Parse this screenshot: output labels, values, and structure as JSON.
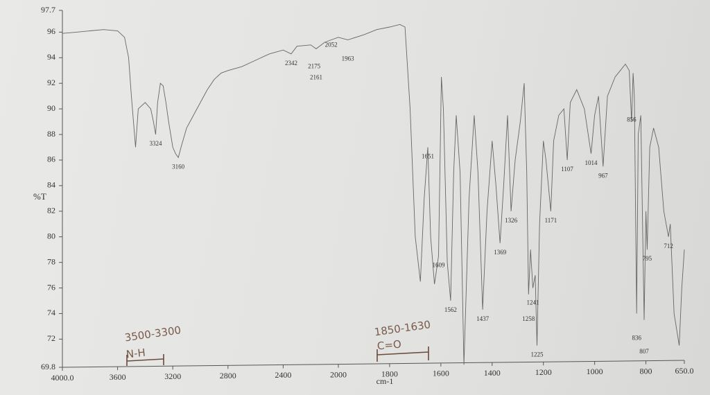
{
  "chart_data": {
    "type": "line",
    "x_label": "cm-1",
    "y_label": "%T",
    "color": "#666666",
    "x": [
      4000,
      3900,
      3800,
      3700,
      3600,
      3550,
      3520,
      3500,
      3470,
      3450,
      3400,
      3360,
      3340,
      3324,
      3310,
      3290,
      3270,
      3250,
      3230,
      3200,
      3180,
      3160,
      3140,
      3100,
      3050,
      3000,
      2950,
      2900,
      2850,
      2800,
      2700,
      2600,
      2500,
      2400,
      2342,
      2300,
      2200,
      2175,
      2161,
      2100,
      2052,
      2000,
      1963,
      1900,
      1850,
      1800,
      1760,
      1740,
      1720,
      1700,
      1680,
      1665,
      1651,
      1640,
      1625,
      1609,
      1598,
      1590,
      1575,
      1562,
      1550,
      1540,
      1525,
      1510,
      1490,
      1470,
      1455,
      1437,
      1420,
      1400,
      1385,
      1369,
      1355,
      1340,
      1326,
      1310,
      1290,
      1275,
      1265,
      1258,
      1250,
      1241,
      1232,
      1225,
      1215,
      1200,
      1190,
      1171,
      1160,
      1140,
      1120,
      1107,
      1095,
      1070,
      1040,
      1014,
      1000,
      985,
      967,
      950,
      920,
      900,
      880,
      865,
      856,
      850,
      845,
      836,
      830,
      820,
      807,
      800,
      795,
      785,
      770,
      750,
      730,
      712,
      705,
      690,
      670,
      660,
      650
    ],
    "values": [
      95.9,
      96.0,
      96.1,
      96.2,
      96.1,
      95.6,
      94,
      91,
      87,
      90,
      90.5,
      90,
      89,
      88,
      90.5,
      92,
      91.8,
      90.5,
      89,
      87,
      86.5,
      86.2,
      87,
      88.5,
      89.5,
      90.5,
      91.5,
      92.3,
      92.8,
      93,
      93.3,
      93.8,
      94.3,
      94.6,
      94.3,
      94.9,
      95,
      94.8,
      94.7,
      95.2,
      95.4,
      95.6,
      95.4,
      95.8,
      96.2,
      96.4,
      96.6,
      96.4,
      90,
      80,
      76.5,
      83,
      87,
      80,
      76.3,
      78.5,
      92.5,
      90,
      78,
      75,
      85,
      89.5,
      85,
      70,
      83,
      89.5,
      85,
      74.3,
      82,
      87.5,
      84,
      79.5,
      84,
      89.5,
      82,
      86,
      89,
      92,
      85,
      75.5,
      79,
      76,
      77,
      71.5,
      81,
      87.5,
      86,
      82,
      87.5,
      89.5,
      90,
      86,
      90.5,
      91.5,
      90,
      86.5,
      89.5,
      91,
      85.5,
      91,
      92.5,
      93,
      93.5,
      93,
      89,
      92.8,
      91,
      74,
      88,
      89.5,
      73.5,
      82,
      79,
      87,
      88.5,
      87,
      82,
      80,
      81,
      74,
      71.5,
      76,
      79
    ],
    "xlim": [
      4000,
      650
    ],
    "xticks": [
      {
        "value": 4000,
        "label": "4000.0"
      },
      3600,
      3200,
      2800,
      2400,
      2000,
      1800,
      1600,
      1400,
      1200,
      1000,
      800,
      {
        "value": 650,
        "label": "650.0"
      }
    ],
    "ylim": [
      69.8,
      97.7
    ],
    "yticks": [
      69.8,
      72,
      74,
      76,
      78,
      80,
      82,
      84,
      86,
      88,
      90,
      92,
      94,
      96,
      97.7
    ],
    "peaks": [
      3324,
      3160,
      2342,
      2175,
      2161,
      2052,
      1963,
      1651,
      1609,
      1562,
      1437,
      1369,
      1326,
      1258,
      1241,
      1225,
      1171,
      1107,
      1014,
      967,
      856,
      836,
      807,
      795,
      712
    ],
    "annotations": [
      {
        "range": "3500-3300",
        "group": "N-H"
      },
      {
        "range": "1850-1630",
        "group": "C=O"
      }
    ]
  }
}
